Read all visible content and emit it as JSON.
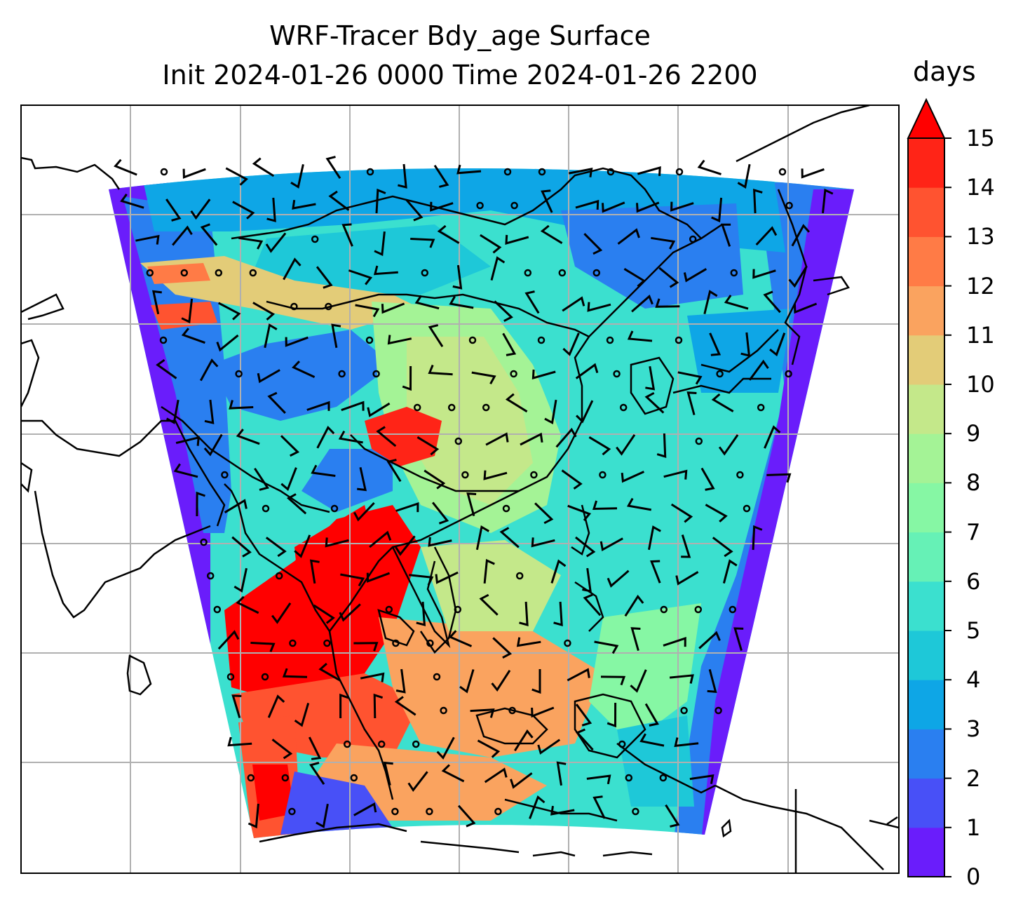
{
  "title": {
    "line1": "WRF-Tracer Bdy_age Surface",
    "line2": "Init 2024-01-26 0000 Time 2024-01-26 2200"
  },
  "colorbar": {
    "label": "days",
    "ticks": [
      "0",
      "1",
      "2",
      "3",
      "4",
      "5",
      "6",
      "7",
      "8",
      "9",
      "10",
      "11",
      "12",
      "13",
      "14",
      "15"
    ],
    "extend": "max",
    "colors": [
      "#6a1dfb",
      "#4850f7",
      "#2a7ff0",
      "#0ea6e6",
      "#1ec8d8",
      "#3be0cf",
      "#66f1b6",
      "#86f7a4",
      "#a4f396",
      "#c4e88a",
      "#e3cc78",
      "#faa35f",
      "#ff7b46",
      "#ff5330",
      "#ff2417",
      "#ff0000"
    ]
  }
}
